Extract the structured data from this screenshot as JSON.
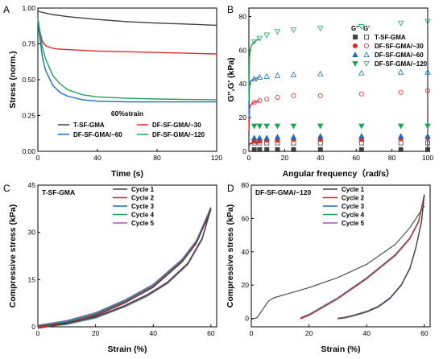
{
  "chart_data": [
    {
      "panel": "A",
      "type": "line",
      "xlabel": "Time (s)",
      "ylabel": "Stress (norm.)",
      "xlim": [
        0,
        120
      ],
      "ylim": [
        0,
        1.0
      ],
      "xticks": [
        "0",
        "40",
        "80",
        "120"
      ],
      "yticks": [
        "0.00",
        "0.25",
        "0.50",
        "0.75",
        "1.00"
      ],
      "annotation": "60%strain",
      "legend_position": "bottom",
      "series": [
        {
          "name": "T-SF-GMA",
          "color": "#404040",
          "x": [
            0,
            1,
            5,
            10,
            20,
            40,
            60,
            80,
            100,
            120
          ],
          "y": [
            0.98,
            0.975,
            0.965,
            0.955,
            0.94,
            0.92,
            0.905,
            0.895,
            0.888,
            0.88
          ]
        },
        {
          "name": "DF-SF-GMA/~30",
          "color": "#e8262b",
          "x": [
            0,
            1,
            3,
            5,
            8,
            12,
            20,
            40,
            60,
            80,
            100,
            120
          ],
          "y": [
            0.93,
            0.85,
            0.77,
            0.74,
            0.725,
            0.715,
            0.71,
            0.7,
            0.695,
            0.69,
            0.685,
            0.68
          ]
        },
        {
          "name": "DF-SF-GMA/~60",
          "color": "#1b6fbf",
          "x": [
            0,
            1,
            3,
            5,
            10,
            15,
            20,
            30,
            40,
            60,
            80,
            100,
            120
          ],
          "y": [
            0.92,
            0.82,
            0.66,
            0.57,
            0.46,
            0.41,
            0.385,
            0.36,
            0.35,
            0.345,
            0.345,
            0.345,
            0.345
          ]
        },
        {
          "name": "DF-SF-GMA/~120",
          "color": "#1fa45a",
          "x": [
            0,
            1,
            3,
            5,
            10,
            15,
            20,
            30,
            40,
            60,
            80,
            100,
            120
          ],
          "y": [
            0.93,
            0.86,
            0.73,
            0.65,
            0.53,
            0.47,
            0.43,
            0.395,
            0.38,
            0.37,
            0.365,
            0.362,
            0.36
          ]
        }
      ]
    },
    {
      "panel": "B",
      "type": "scatter",
      "xlabel": "Angular frequency（rad/s）",
      "ylabel": "G'',G' (kPa)",
      "xlim": [
        0,
        100
      ],
      "ylim": [
        0,
        85
      ],
      "xticks": [
        "0",
        "20",
        "40",
        "60",
        "80",
        "100"
      ],
      "yticks": [
        "0",
        "20",
        "40",
        "60",
        "80"
      ],
      "legend_position": "top-right",
      "legend_headers": [
        "G''",
        "G'"
      ],
      "x": [
        0.1,
        0.3,
        0.7,
        1.5,
        3,
        6,
        10,
        16,
        25,
        40,
        63,
        85,
        100
      ],
      "series": [
        {
          "name": "T-SF-GMA",
          "color": "#404040",
          "g_storage": [
            3,
            4,
            4.5,
            4.8,
            5,
            5,
            5,
            5,
            5,
            5,
            5,
            5,
            5
          ],
          "g_loss": [
            0.5,
            0.8,
            1,
            1,
            1,
            1,
            1,
            1,
            1,
            1,
            1,
            1,
            1
          ]
        },
        {
          "name": "DF-SF-GMA/~30",
          "color": "#e8262b",
          "g_storage": [
            12,
            25,
            27,
            28,
            29,
            30,
            31,
            32,
            33,
            33,
            34,
            35,
            36
          ],
          "g_loss": [
            4,
            5,
            5.5,
            6,
            6,
            6,
            6.5,
            6.5,
            7,
            7,
            7,
            7.5,
            8
          ]
        },
        {
          "name": "DF-SF-GMA/~60",
          "color": "#1b6fbf",
          "g_storage": [
            20,
            38,
            41,
            42,
            43,
            44,
            44.5,
            45,
            45.5,
            46,
            46.5,
            47,
            47
          ],
          "g_loss": [
            6,
            7,
            7.5,
            8,
            8,
            8,
            8,
            8.5,
            8.5,
            9,
            9,
            9,
            9
          ]
        },
        {
          "name": "DF-SF-GMA/~120",
          "color": "#1fa45a",
          "g_storage": [
            30,
            55,
            60,
            63,
            65,
            67,
            69,
            71,
            72,
            73,
            74,
            76,
            77
          ],
          "g_loss": [
            10,
            14,
            15,
            15,
            15,
            15,
            15,
            15,
            15,
            15,
            15,
            15,
            15
          ]
        }
      ]
    },
    {
      "panel": "C",
      "type": "line",
      "title": "T-SF-GMA",
      "xlabel": "Strain (%)",
      "ylabel": "Compressive stress (kPa)",
      "xlim": [
        0,
        62
      ],
      "ylim": [
        0,
        45
      ],
      "xticks": [
        "0",
        "20",
        "40",
        "60"
      ],
      "yticks": [
        "0",
        "15",
        "30",
        "45"
      ],
      "legend_position": "top-center",
      "series": [
        {
          "name": "Cycle 1",
          "color": "#404040"
        },
        {
          "name": "Cycle 2",
          "color": "#e8262b"
        },
        {
          "name": "Cycle 3",
          "color": "#1b6fbf"
        },
        {
          "name": "Cycle 4",
          "color": "#1fa45a"
        },
        {
          "name": "Cycle 5",
          "color": "#9b59b6"
        }
      ],
      "loading_x": [
        0,
        10,
        20,
        30,
        40,
        50,
        55,
        60
      ],
      "loading_y": [
        0,
        1.5,
        4,
        8,
        13,
        21,
        27,
        37.5
      ],
      "unloading_x": [
        60,
        57,
        52,
        45,
        38,
        30,
        20,
        10,
        0
      ],
      "unloading_y": [
        37.5,
        28,
        20,
        14,
        10,
        6.5,
        3,
        1,
        0
      ]
    },
    {
      "panel": "D",
      "type": "line",
      "title": "DF-SF-GMA/~120",
      "xlabel": "Strain (%)",
      "ylabel": "Compressive stress (kPa)",
      "xlim": [
        0,
        62
      ],
      "ylim": [
        -5,
        80
      ],
      "xticks": [
        "0",
        "20",
        "40",
        "60"
      ],
      "yticks": [
        "0",
        "20",
        "40",
        "60",
        "80"
      ],
      "legend_position": "top-center",
      "series": [
        {
          "name": "Cycle 1",
          "color": "#404040"
        },
        {
          "name": "Cycle 2",
          "color": "#e8262b"
        },
        {
          "name": "Cycle 3",
          "color": "#1b6fbf"
        },
        {
          "name": "Cycle 4",
          "color": "#1fa45a"
        },
        {
          "name": "Cycle 5",
          "color": "#9b59b6"
        }
      ],
      "cycle1_x": [
        0,
        2,
        4,
        6,
        8,
        12,
        20,
        30,
        40,
        50,
        55,
        60
      ],
      "cycle1_y": [
        0,
        1,
        6,
        11,
        13,
        15,
        19,
        25,
        33,
        45,
        55,
        68
      ],
      "loading_x": [
        17,
        20,
        25,
        30,
        35,
        40,
        45,
        50,
        55,
        58,
        60
      ],
      "loading_y": [
        0,
        2,
        7,
        12,
        18,
        24,
        31,
        38,
        48,
        58,
        74
      ],
      "unloading_x": [
        60,
        59,
        57,
        55,
        52,
        48,
        44,
        40,
        35,
        32,
        30
      ],
      "unloading_y": [
        74,
        58,
        42,
        30,
        20,
        12,
        7,
        4,
        1.5,
        0.3,
        0
      ]
    }
  ]
}
